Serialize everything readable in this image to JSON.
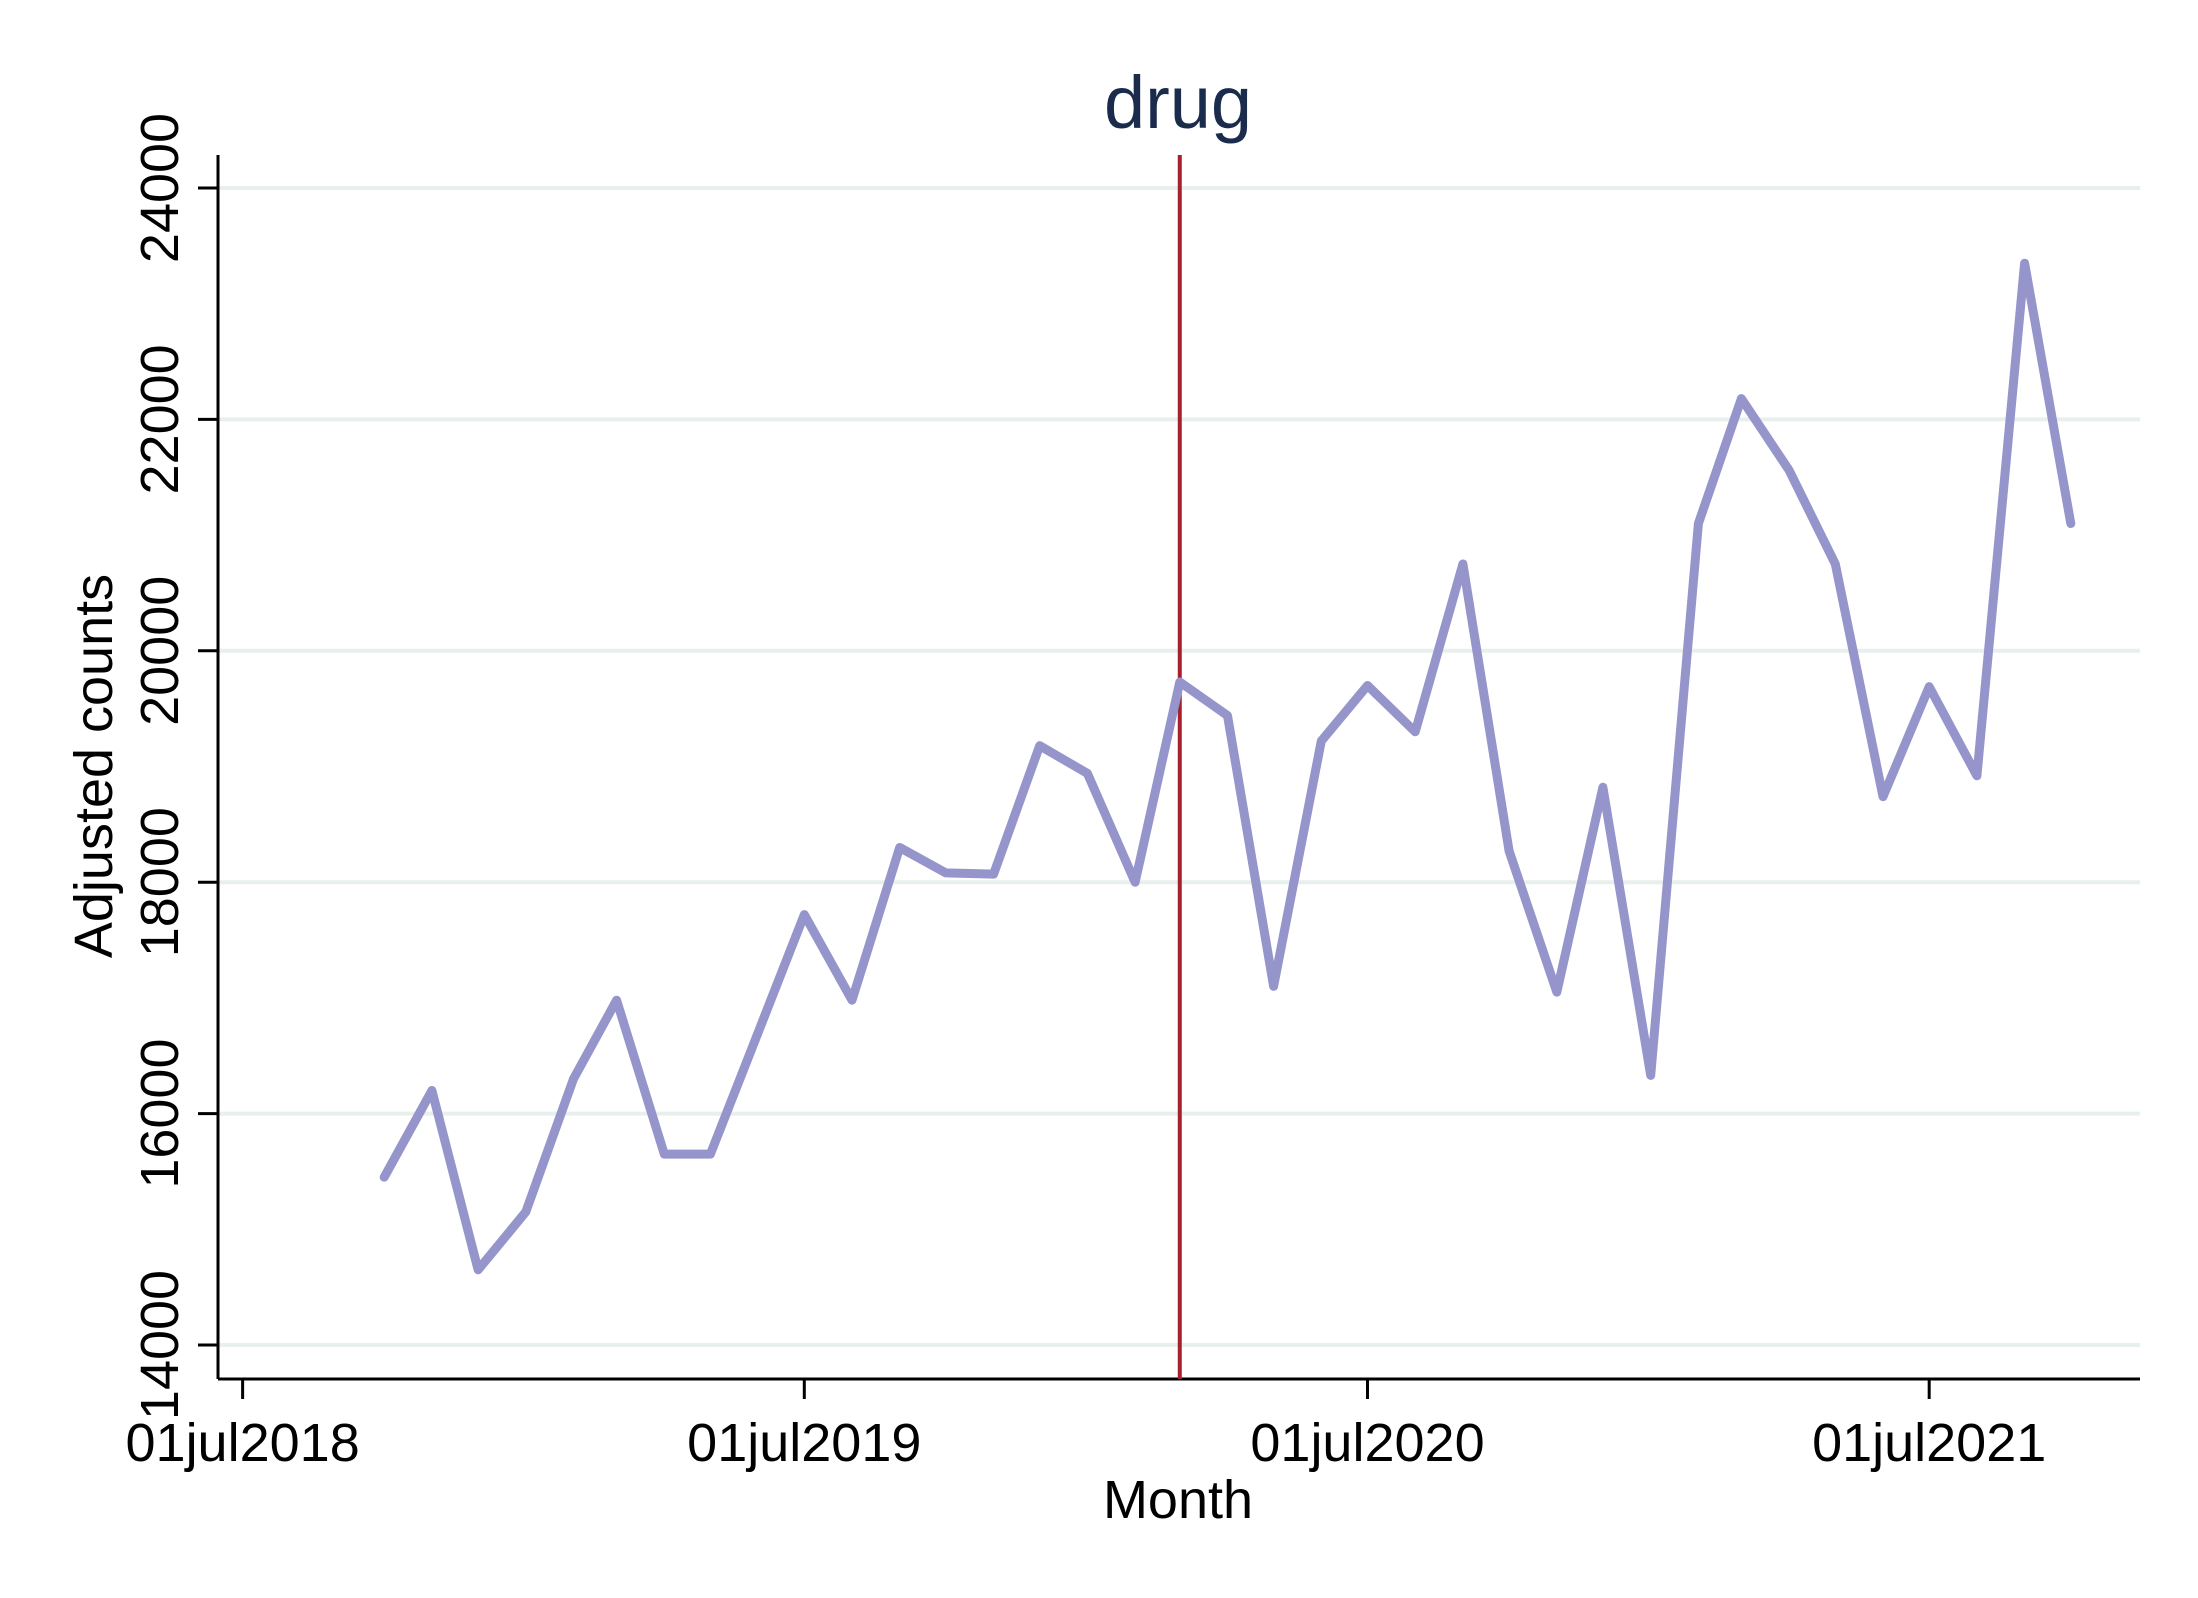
{
  "chart_data": {
    "type": "line",
    "title": "drug",
    "xlabel": "Month",
    "ylabel": "Adjusted counts",
    "ylim": [
      14000,
      24000
    ],
    "xlim": [
      "2018-06-15",
      "2021-11-15"
    ],
    "yticks": [
      14000,
      16000,
      18000,
      20000,
      22000,
      24000
    ],
    "xticks": [
      {
        "value": "2018-07-01",
        "label": "01jul2018"
      },
      {
        "value": "2019-07-01",
        "label": "01jul2019"
      },
      {
        "value": "2020-07-01",
        "label": "01jul2020"
      },
      {
        "value": "2021-07-01",
        "label": "01jul2021"
      }
    ],
    "reference_line": {
      "x": "2020-03-01",
      "color": "#a6202e"
    },
    "grid": true,
    "line_color": "#9595cc",
    "gridline_color": "#e8f0ee",
    "series": [
      {
        "x": [
          "2018-10-01",
          "2018-11-01",
          "2018-12-01",
          "2019-01-01",
          "2019-02-01",
          "2019-03-01",
          "2019-04-01",
          "2019-05-01",
          "2019-06-01",
          "2019-07-01",
          "2019-08-01",
          "2019-09-01",
          "2019-10-01",
          "2019-11-01",
          "2019-12-01",
          "2020-01-01",
          "2020-02-01",
          "2020-03-01",
          "2020-04-01",
          "2020-05-01",
          "2020-06-01",
          "2020-07-01",
          "2020-08-01",
          "2020-09-01",
          "2020-10-01",
          "2020-11-01",
          "2020-12-01",
          "2021-01-01",
          "2021-02-01",
          "2021-03-01",
          "2021-04-01",
          "2021-05-01",
          "2021-06-01",
          "2021-07-01",
          "2021-08-01",
          "2021-09-01",
          "2021-10-01"
        ],
        "y": [
          15450,
          16200,
          14650,
          15150,
          16300,
          16980,
          15650,
          15650,
          16700,
          17720,
          16980,
          18300,
          18080,
          18070,
          19180,
          18940,
          18000,
          19730,
          19440,
          17100,
          19220,
          19700,
          19300,
          20750,
          18270,
          17050,
          18820,
          16330,
          21100,
          22180,
          21560,
          20750,
          18740,
          19690,
          18920,
          23350,
          21100
        ]
      }
    ]
  }
}
